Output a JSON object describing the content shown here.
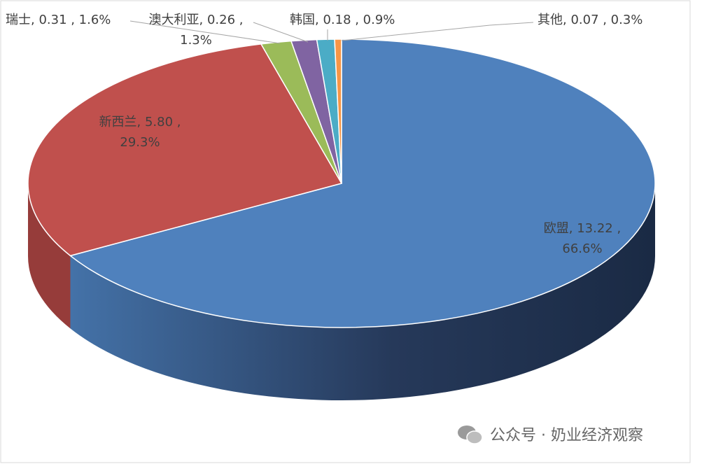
{
  "chart_data": {
    "type": "pie",
    "categories": [
      "欧盟",
      "新西兰",
      "瑞士",
      "澳大利亚",
      "韩国",
      "其他"
    ],
    "values": [
      13.22,
      5.8,
      0.31,
      0.26,
      0.18,
      0.07
    ],
    "value_labels": [
      "欧盟, 13.22 , 66.6%",
      "新西兰, 5.80 , 29.3%",
      "瑞士, 0.31 , 1.6%",
      "澳大利亚, 0.26 , 1.3%",
      "韩国, 0.18 , 0.9%",
      "其他, 0.07 , 0.3%"
    ],
    "colors": [
      "#4f81bd",
      "#c0504d",
      "#9bbb59",
      "#8064a2",
      "#4bacc6",
      "#f79646"
    ],
    "side_colors": [
      "#2c4a74",
      "#963c3a",
      "#76923c",
      "#5f4b7a",
      "#31859c",
      "#c0702c"
    ]
  },
  "watermark": "公众号 · 奶业经济观察"
}
